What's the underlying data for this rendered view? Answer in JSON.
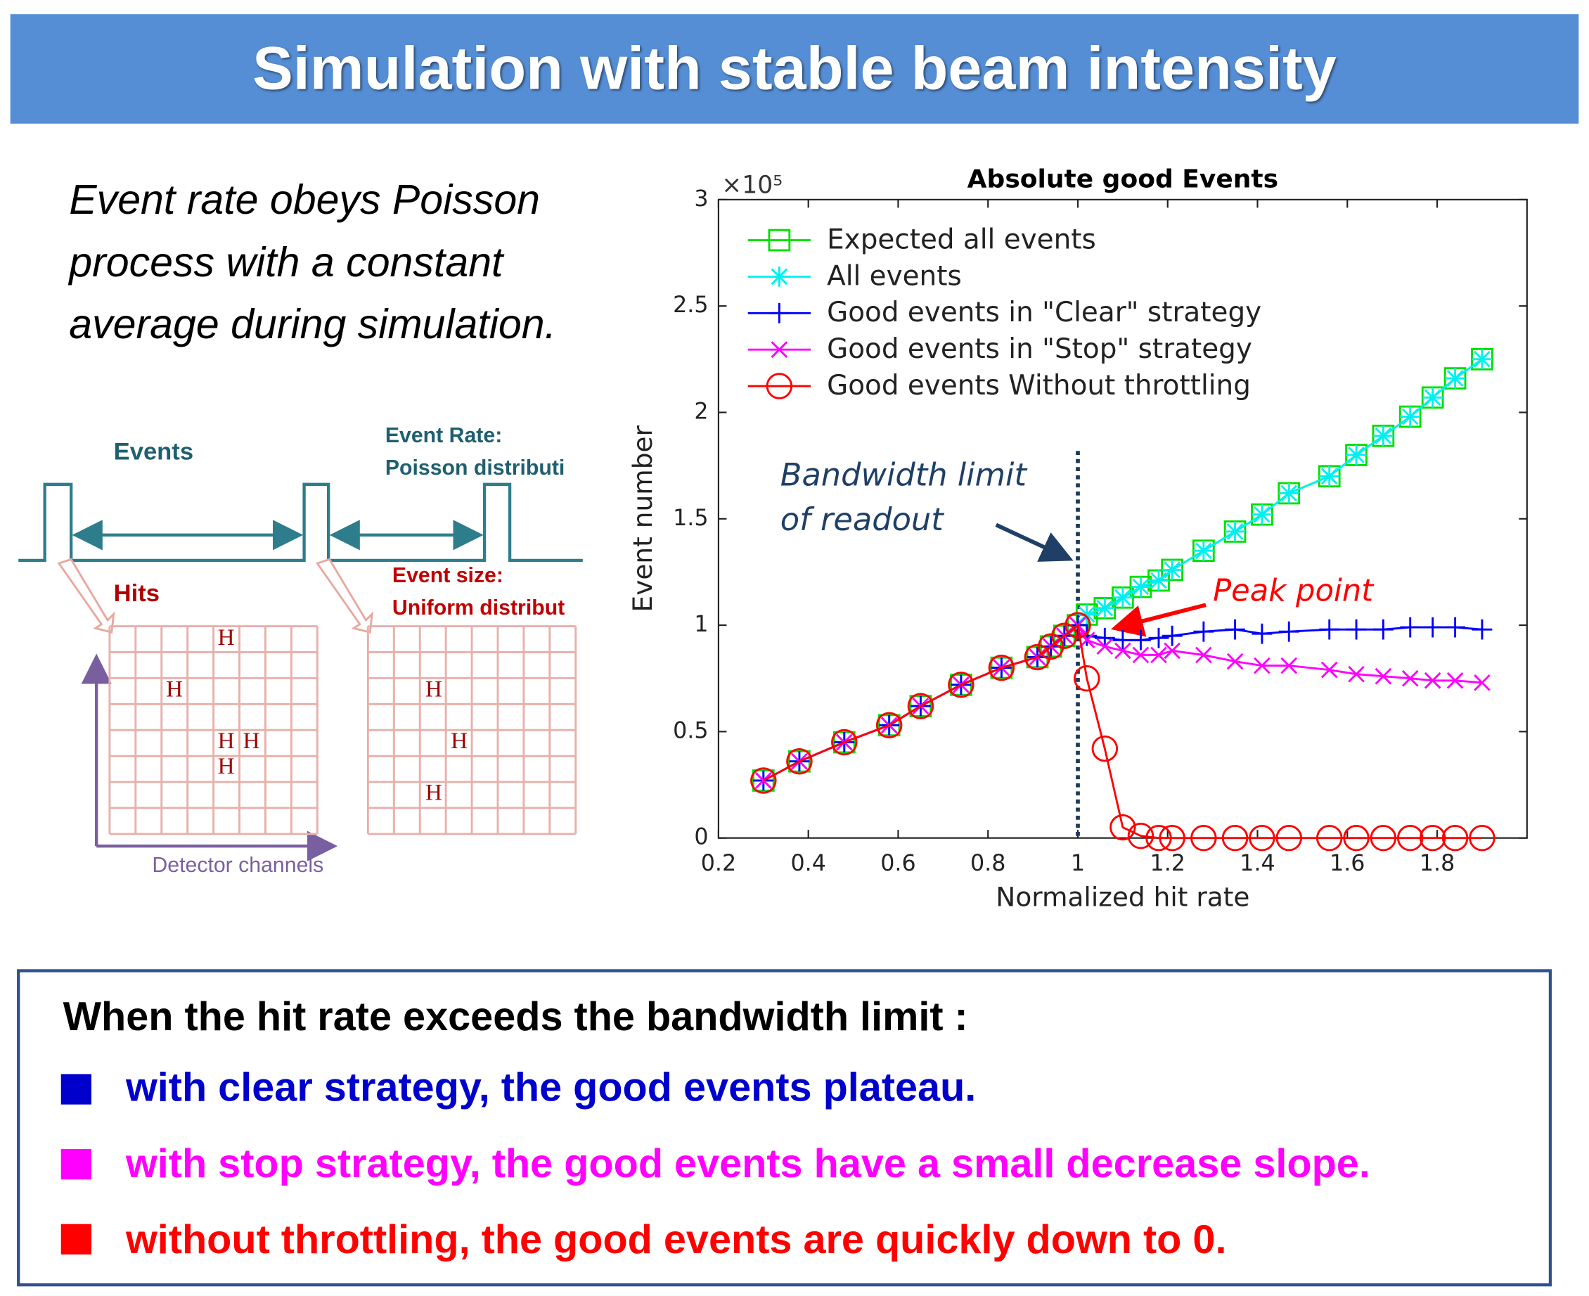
{
  "header": {
    "title": "Simulation with stable beam intensity"
  },
  "intro": {
    "lines": [
      "Event rate obeys Poisson",
      "process with a constant",
      "average during simulation."
    ]
  },
  "diagram": {
    "events_label": "Events",
    "event_rate": [
      "Event Rate:",
      "Poisson distributi"
    ],
    "hits_label": "Hits",
    "event_size": [
      "Event size:",
      "Uniform distribut"
    ],
    "hit_marker": "H",
    "axis_label": "Detector channels"
  },
  "chart_data": {
    "type": "line",
    "title": "Absolute good Events",
    "y_multiplier": "×10⁵",
    "x_label": "Normalized hit rate",
    "y_label": "Event number",
    "x": [
      0.3,
      0.38,
      0.48,
      0.58,
      0.65,
      0.74,
      0.83,
      0.91,
      0.94,
      0.97,
      1.0,
      1.02,
      1.06,
      1.1,
      1.14,
      1.18,
      1.21,
      1.28,
      1.35,
      1.41,
      1.47,
      1.56,
      1.62,
      1.68,
      1.74,
      1.79,
      1.84,
      1.9
    ],
    "series": [
      {
        "name": "Expected all events",
        "color": "#00e000",
        "marker": "square",
        "values": [
          0.27,
          0.36,
          0.45,
          0.53,
          0.62,
          0.72,
          0.8,
          0.85,
          0.9,
          0.95,
          1.0,
          1.05,
          1.08,
          1.13,
          1.18,
          1.21,
          1.26,
          1.35,
          1.44,
          1.52,
          1.62,
          1.7,
          1.8,
          1.89,
          1.98,
          2.07,
          2.16,
          2.25
        ]
      },
      {
        "name": "All events",
        "color": "#00f0f0",
        "marker": "asterisk",
        "values": [
          0.27,
          0.36,
          0.45,
          0.53,
          0.62,
          0.72,
          0.8,
          0.85,
          0.9,
          0.95,
          1.0,
          1.05,
          1.08,
          1.13,
          1.18,
          1.21,
          1.26,
          1.35,
          1.44,
          1.52,
          1.62,
          1.7,
          1.8,
          1.89,
          1.98,
          2.07,
          2.16,
          2.25
        ]
      },
      {
        "name": "Good events in \"Clear\" strategy",
        "color": "#0000ff",
        "marker": "plus",
        "values": [
          0.27,
          0.36,
          0.45,
          0.53,
          0.62,
          0.72,
          0.8,
          0.85,
          0.9,
          0.95,
          1.0,
          0.95,
          0.94,
          0.93,
          0.93,
          0.94,
          0.95,
          0.97,
          0.98,
          0.96,
          0.97,
          0.98,
          0.98,
          0.98,
          0.99,
          0.99,
          0.99,
          0.98
        ]
      },
      {
        "name": "Good events in \"Stop\" strategy",
        "color": "#ff00ff",
        "marker": "cross",
        "values": [
          0.27,
          0.36,
          0.45,
          0.53,
          0.62,
          0.72,
          0.8,
          0.85,
          0.9,
          0.95,
          1.0,
          0.93,
          0.9,
          0.88,
          0.86,
          0.86,
          0.88,
          0.86,
          0.83,
          0.81,
          0.81,
          0.79,
          0.77,
          0.76,
          0.75,
          0.74,
          0.74,
          0.73
        ]
      },
      {
        "name": "Good events Without throttling",
        "color": "#ff0000",
        "marker": "circle",
        "values": [
          0.27,
          0.36,
          0.45,
          0.53,
          0.62,
          0.72,
          0.8,
          0.85,
          0.9,
          0.95,
          1.0,
          0.75,
          0.42,
          0.05,
          0.01,
          0,
          0,
          0,
          0,
          0,
          0,
          0,
          0,
          0,
          0,
          0,
          0,
          0
        ]
      }
    ],
    "xlim": [
      0.2,
      2.0
    ],
    "ylim": [
      0,
      3
    ],
    "xticks": [
      0.2,
      0.4,
      0.6,
      0.8,
      1,
      1.2,
      1.4,
      1.6,
      1.8
    ],
    "yticks": [
      0,
      0.5,
      1,
      1.5,
      2,
      2.5,
      3
    ],
    "grid": false,
    "legend": "upper left",
    "bandwidth_limit_x": 1,
    "annotations": {
      "bandwidth": [
        "Bandwidth limit",
        "of readout"
      ],
      "peak": "Peak point"
    }
  },
  "summary": {
    "heading": "When the hit rate exceeds the bandwidth limit :",
    "bullets": [
      "with clear strategy, the good events plateau.",
      "with stop strategy, the good events have a small decrease slope.",
      "without throttling, the good events are quickly down to 0."
    ]
  }
}
